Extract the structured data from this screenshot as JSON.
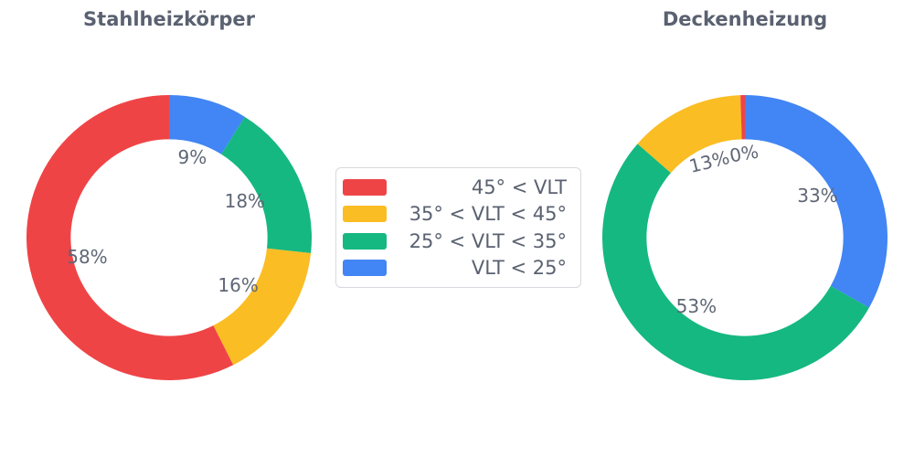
{
  "page": {
    "background": "#ffffff"
  },
  "colors": {
    "red": "#EF4446",
    "yellow": "#FABD23",
    "green": "#15B881",
    "blue": "#4285F4"
  },
  "text_colors": {
    "title": "#5A6170",
    "percent_label": "#5F6775",
    "legend": "#5A6170"
  },
  "legend": {
    "position": "center",
    "items": [
      {
        "color_key": "red",
        "label": "45° < VLT"
      },
      {
        "color_key": "yellow",
        "label": "35° < VLT < 45°"
      },
      {
        "color_key": "green",
        "label": "25° < VLT < 35°"
      },
      {
        "color_key": "blue",
        "label": "VLT < 25°"
      }
    ]
  },
  "chart_data": [
    {
      "type": "pie",
      "subtype": "donut",
      "title": "Stahlheizkörper",
      "hole_ratio": 0.69,
      "start_angle_deg": 0,
      "direction": "clockwise",
      "segments": [
        {
          "category": "VLT < 25°",
          "color_key": "blue",
          "percent": 9,
          "label": "9%",
          "label_rotation_deg": 0
        },
        {
          "category": "25° < VLT < 35°",
          "color_key": "green",
          "percent": 18,
          "label": "18%",
          "label_rotation_deg": 0
        },
        {
          "category": "35° < VLT < 45°",
          "color_key": "yellow",
          "percent": 16,
          "label": "16%",
          "label_rotation_deg": 0
        },
        {
          "category": "45° < VLT",
          "color_key": "red",
          "percent": 58,
          "label": "58%",
          "label_rotation_deg": 0
        }
      ]
    },
    {
      "type": "pie",
      "subtype": "donut",
      "title": "Deckenheizung",
      "hole_ratio": 0.69,
      "start_angle_deg": 0,
      "direction": "clockwise",
      "segments": [
        {
          "category": "VLT < 25°",
          "color_key": "blue",
          "percent": 33,
          "label": "33%",
          "label_rotation_deg": 0
        },
        {
          "category": "25° < VLT < 35°",
          "color_key": "green",
          "percent": 53,
          "label": "53%",
          "label_rotation_deg": 0
        },
        {
          "category": "35° < VLT < 45°",
          "color_key": "yellow",
          "percent": 13,
          "label": "13%",
          "label_rotation_deg": -14
        },
        {
          "category": "45° < VLT",
          "color_key": "red",
          "percent": 0,
          "label": "0%",
          "label_rotation_deg": -10,
          "arc_percent": 0.5
        }
      ]
    }
  ]
}
